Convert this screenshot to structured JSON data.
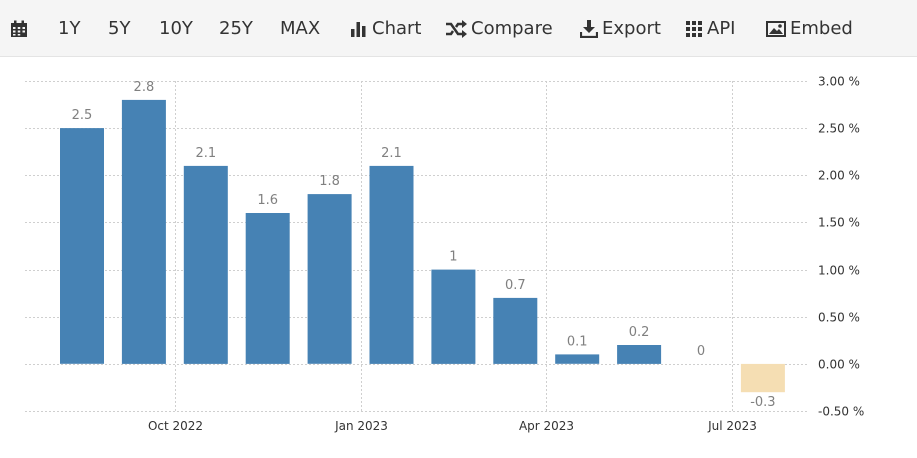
{
  "toolbar": {
    "items": [
      {
        "icon": "calendar-icon",
        "label": ""
      },
      {
        "icon": "",
        "label": "1Y"
      },
      {
        "icon": "",
        "label": "5Y"
      },
      {
        "icon": "",
        "label": "10Y"
      },
      {
        "icon": "",
        "label": "25Y"
      },
      {
        "icon": "",
        "label": "MAX"
      },
      {
        "icon": "bar-chart-icon",
        "label": "Chart"
      },
      {
        "icon": "shuffle-icon",
        "label": "Compare"
      },
      {
        "icon": "download-icon",
        "label": "Export"
      },
      {
        "icon": "grid-icon",
        "label": "API"
      },
      {
        "icon": "image-icon",
        "label": "Embed"
      }
    ]
  },
  "colors": {
    "positive_bar": "#4682b4",
    "negative_bar": "#f5deb3"
  },
  "chart_data": {
    "type": "bar",
    "title": "",
    "xlabel": "",
    "ylabel": "",
    "series": [
      {
        "values": [
          2.5,
          2.8,
          2.1,
          1.6,
          1.8,
          2.1,
          1,
          0.7,
          0.1,
          0.2,
          0,
          -0.3
        ],
        "labels": [
          "2.5",
          "2.8",
          "2.1",
          "1.6",
          "1.8",
          "2.1",
          "1",
          "0.7",
          "0.1",
          "0.2",
          "0",
          "-0.3"
        ]
      }
    ],
    "x_tick_labels": [
      "Oct 2022",
      "Jan 2023",
      "Apr 2023",
      "Jul 2023"
    ],
    "y_ticks": [
      3,
      2.5,
      2,
      1.5,
      1,
      0.5,
      0,
      -0.5
    ],
    "y_tick_labels": [
      "3.00 %",
      "2.50 %",
      "2.00 %",
      "1.50 %",
      "1.00 %",
      "0.50 %",
      "0.00 %",
      "-0.50 %"
    ],
    "ylim": [
      -0.5,
      3
    ],
    "grid": true,
    "y_axis_position": "right"
  }
}
